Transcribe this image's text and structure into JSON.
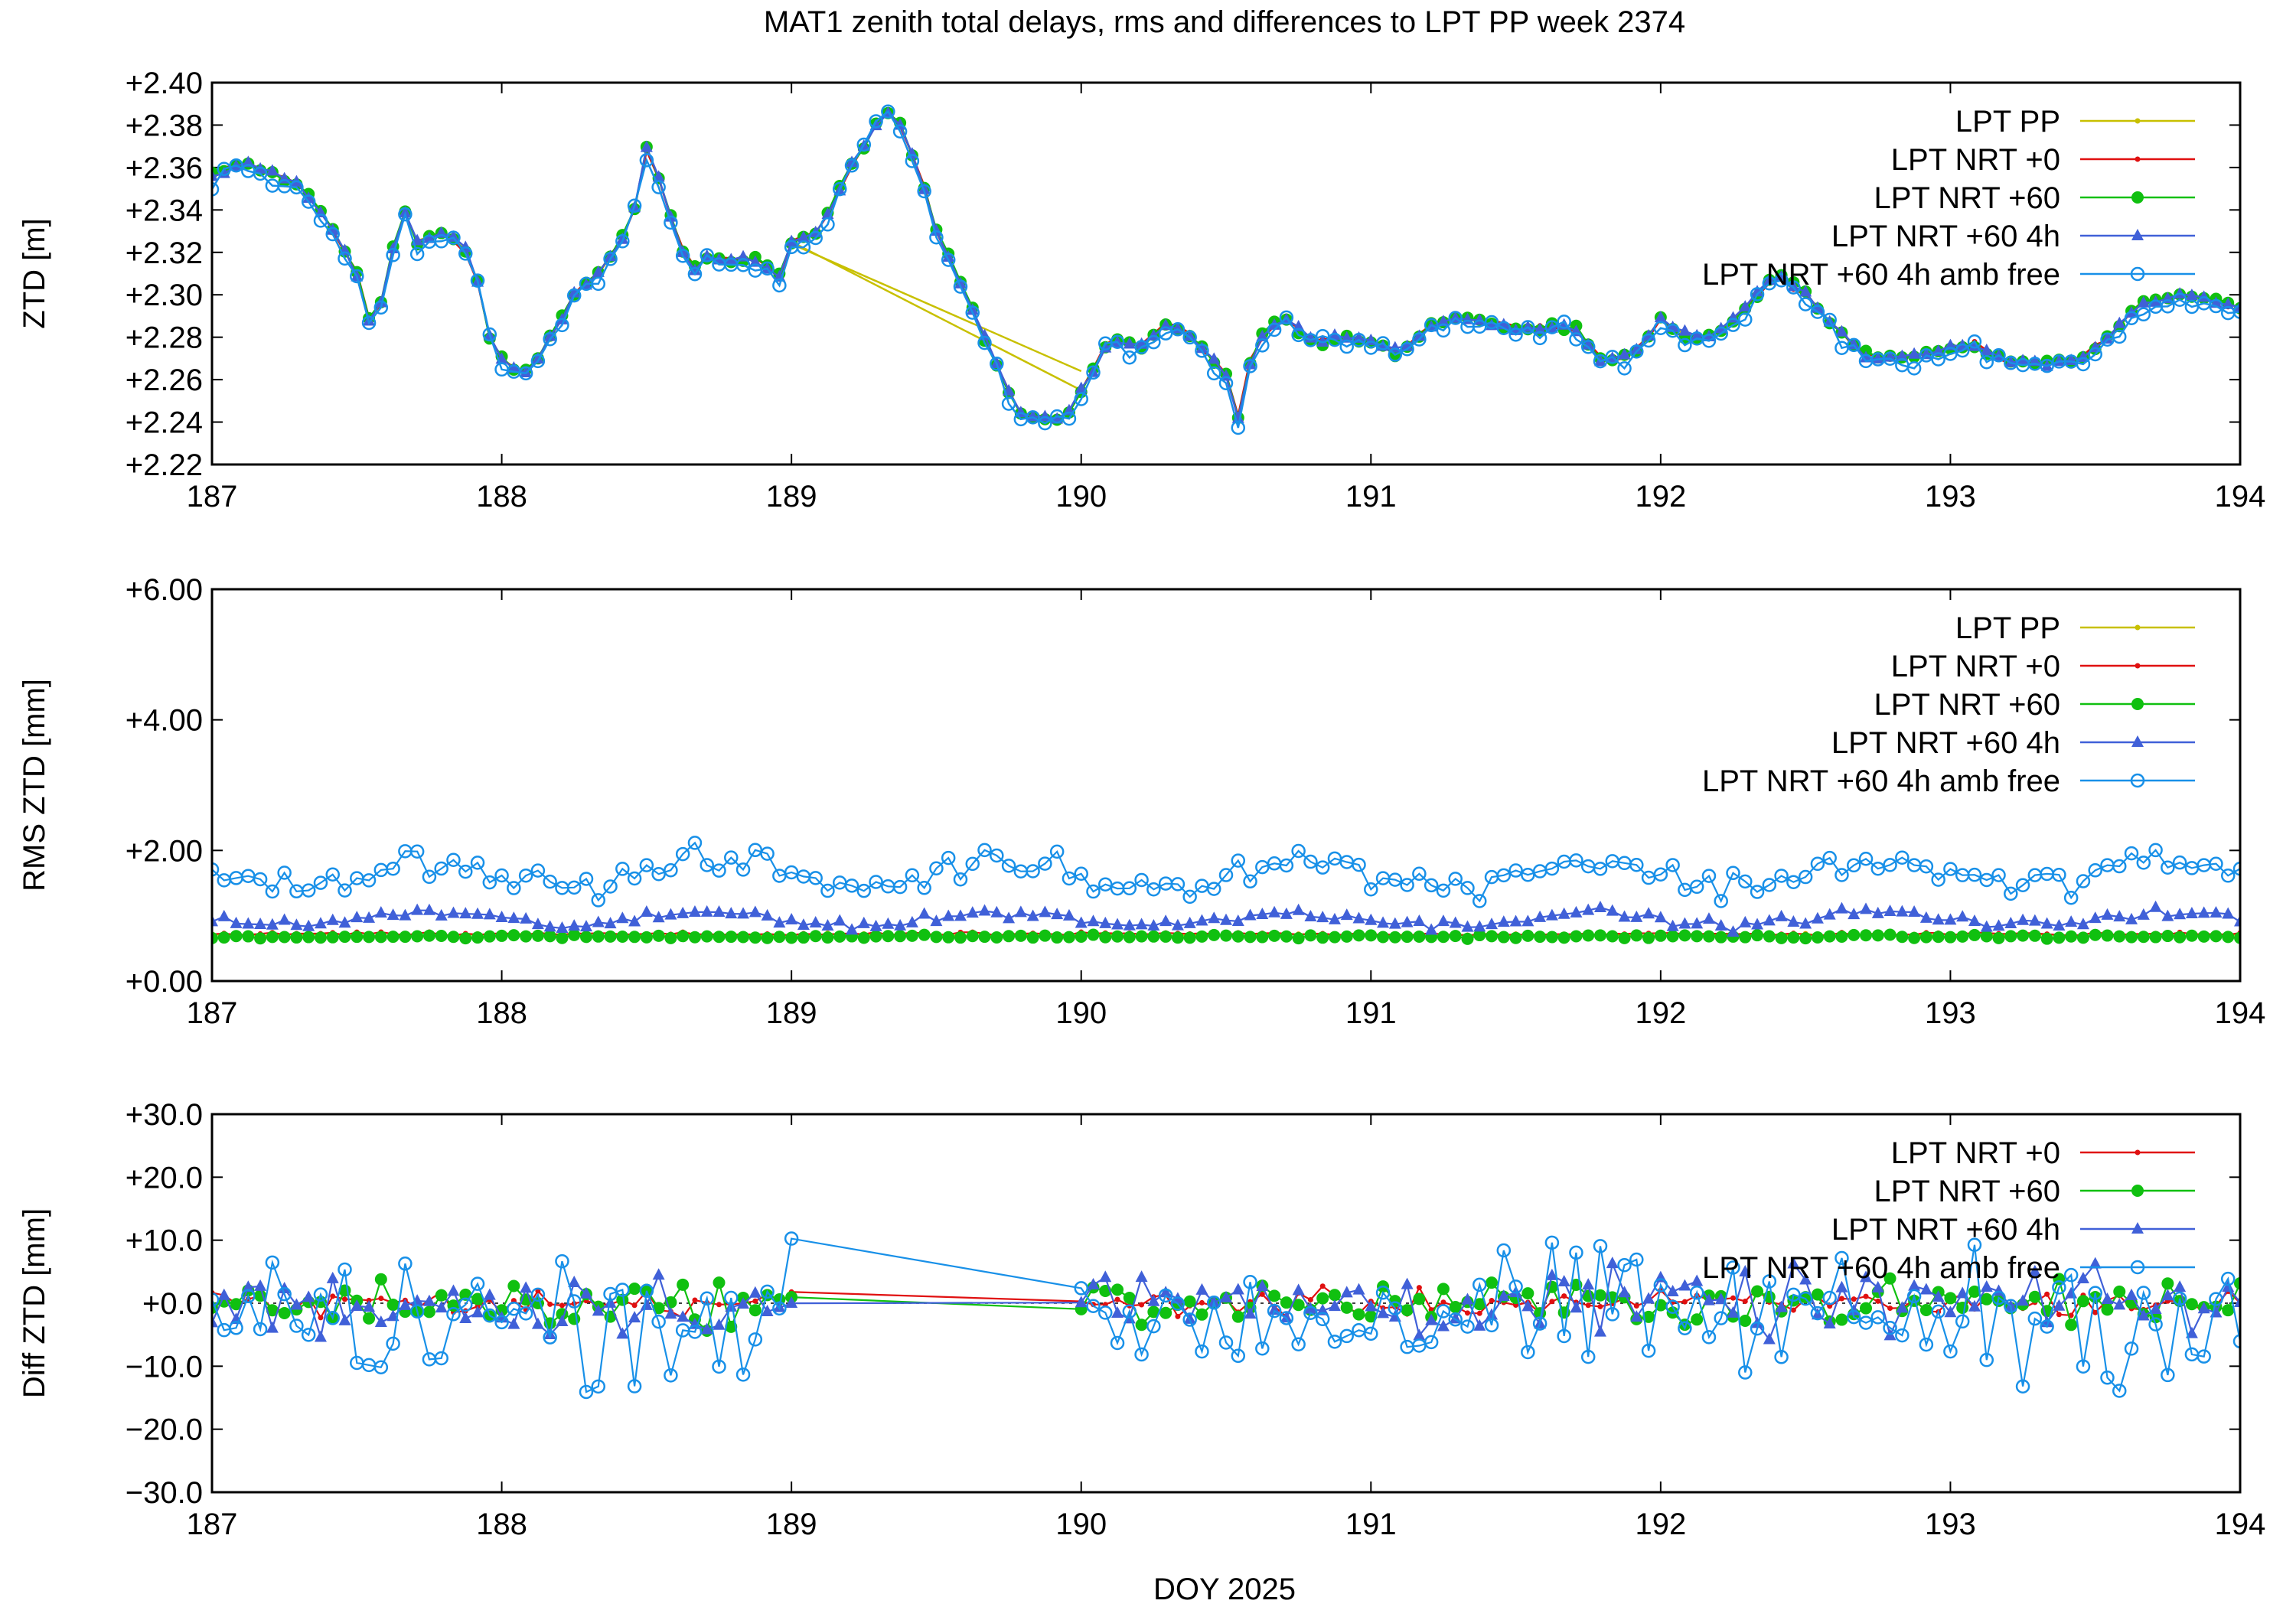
{
  "title": "MAT1 zenith total delays, rms and differences to LPT PP week 2374",
  "xlabel": "DOY 2025",
  "colors": {
    "LPT PP": "#c8c000",
    "LPT NRT +0": "#e01010",
    "LPT NRT +60": "#10c010",
    "LPT NRT +60 4h": "#4060d8",
    "LPT NRT +60 4h amb free": "#1890e8"
  },
  "chart_data": [
    {
      "type": "line",
      "ylabel": "ZTD [m]",
      "xlim": [
        187,
        194
      ],
      "ylim": [
        2.22,
        2.4
      ],
      "xticks": [
        "187",
        "188",
        "189",
        "190",
        "191",
        "192",
        "193",
        "194"
      ],
      "yticks": [
        "+2.22",
        "+2.24",
        "+2.26",
        "+2.28",
        "+2.30",
        "+2.32",
        "+2.34",
        "+2.36",
        "+2.38",
        "+2.40"
      ],
      "legend": "top-right",
      "series": [
        {
          "name": "LPT PP",
          "marker": "dot",
          "line": true
        },
        {
          "name": "LPT NRT +0",
          "marker": "dot",
          "line": true
        },
        {
          "name": "LPT NRT +60",
          "marker": "circle-filled",
          "line": true
        },
        {
          "name": "LPT NRT +60 4h",
          "marker": "triangle",
          "line": true
        },
        {
          "name": "LPT NRT +60 4h amb free",
          "marker": "circle-open",
          "line": true
        }
      ],
      "keypoints": [
        [
          187.0,
          2.356
        ],
        [
          187.1,
          2.362
        ],
        [
          187.2,
          2.358
        ],
        [
          187.3,
          2.352
        ],
        [
          187.4,
          2.335
        ],
        [
          187.5,
          2.31
        ],
        [
          187.55,
          2.285
        ],
        [
          187.6,
          2.3
        ],
        [
          187.65,
          2.345
        ],
        [
          187.7,
          2.325
        ],
        [
          187.8,
          2.33
        ],
        [
          187.9,
          2.318
        ],
        [
          187.95,
          2.282
        ],
        [
          188.0,
          2.27
        ],
        [
          188.08,
          2.262
        ],
        [
          188.15,
          2.275
        ],
        [
          188.25,
          2.3
        ],
        [
          188.35,
          2.312
        ],
        [
          188.45,
          2.335
        ],
        [
          188.5,
          2.368
        ],
        [
          188.55,
          2.352
        ],
        [
          188.6,
          2.33
        ],
        [
          188.65,
          2.31
        ],
        [
          188.7,
          2.318
        ],
        [
          188.8,
          2.316
        ],
        [
          188.9,
          2.318
        ],
        [
          188.95,
          2.305
        ],
        [
          189.0,
          2.325
        ],
        [
          189.1,
          2.33
        ],
        [
          189.2,
          2.36
        ],
        [
          189.3,
          2.382
        ],
        [
          189.35,
          2.388
        ],
        [
          189.45,
          2.355
        ],
        [
          189.5,
          2.33
        ],
        [
          189.6,
          2.3
        ],
        [
          189.7,
          2.27
        ],
        [
          189.78,
          2.245
        ],
        [
          189.85,
          2.242
        ],
        [
          189.95,
          2.242
        ],
        [
          190.0,
          2.255
        ],
        [
          190.1,
          2.28
        ],
        [
          190.2,
          2.275
        ],
        [
          190.3,
          2.288
        ],
        [
          190.4,
          2.278
        ],
        [
          190.5,
          2.262
        ],
        [
          190.53,
          2.236
        ],
        [
          190.6,
          2.278
        ],
        [
          190.7,
          2.29
        ],
        [
          190.8,
          2.278
        ],
        [
          190.9,
          2.28
        ],
        [
          191.0,
          2.278
        ],
        [
          191.1,
          2.272
        ],
        [
          191.2,
          2.285
        ],
        [
          191.3,
          2.29
        ],
        [
          191.5,
          2.284
        ],
        [
          191.7,
          2.285
        ],
        [
          191.8,
          2.268
        ],
        [
          191.9,
          2.272
        ],
        [
          192.0,
          2.288
        ],
        [
          192.1,
          2.28
        ],
        [
          192.2,
          2.282
        ],
        [
          192.3,
          2.295
        ],
        [
          192.4,
          2.31
        ],
        [
          192.5,
          2.3
        ],
        [
          192.6,
          2.285
        ],
        [
          192.7,
          2.272
        ],
        [
          192.8,
          2.27
        ],
        [
          193.0,
          2.274
        ],
        [
          193.1,
          2.276
        ],
        [
          193.2,
          2.268
        ],
        [
          193.3,
          2.268
        ],
        [
          193.45,
          2.27
        ],
        [
          193.55,
          2.28
        ],
        [
          193.65,
          2.296
        ],
        [
          193.8,
          2.3
        ],
        [
          193.9,
          2.298
        ],
        [
          194.0,
          2.294
        ]
      ],
      "gap_segment": {
        "series": "LPT PP",
        "from": [
          189.0,
          2.324
        ],
        "to": [
          190.0,
          2.264
        ]
      }
    },
    {
      "type": "line",
      "ylabel": "RMS ZTD [mm]",
      "xlim": [
        187,
        194
      ],
      "ylim": [
        0,
        6
      ],
      "xticks": [
        "187",
        "188",
        "189",
        "190",
        "191",
        "192",
        "193",
        "194"
      ],
      "yticks": [
        "+0.00",
        "+2.00",
        "+4.00",
        "+6.00"
      ],
      "legend": "top-right",
      "series": [
        {
          "name": "LPT PP",
          "marker": "dot",
          "line": true,
          "level": 0.7
        },
        {
          "name": "LPT NRT +0",
          "marker": "dot",
          "line": true,
          "level": 0.72
        },
        {
          "name": "LPT NRT +60",
          "marker": "circle-filled",
          "line": true,
          "level": 0.68
        },
        {
          "name": "LPT NRT +60 4h",
          "marker": "triangle",
          "line": true,
          "level": 0.95
        },
        {
          "name": "LPT NRT +60 4h amb free",
          "marker": "circle-open",
          "line": true,
          "level": 1.65
        }
      ]
    },
    {
      "type": "line",
      "ylabel": "Diff ZTD [mm]",
      "xlim": [
        187,
        194
      ],
      "ylim": [
        -30,
        30
      ],
      "xticks": [
        "187",
        "188",
        "189",
        "190",
        "191",
        "192",
        "193",
        "194"
      ],
      "yticks": [
        "−30.0",
        "−20.0",
        "−10.0",
        "+0.0",
        "+10.0",
        "+20.0",
        "+30.0"
      ],
      "legend": "top-right",
      "zero_line": true,
      "series": [
        {
          "name": "LPT NRT +0",
          "marker": "dot",
          "line": true
        },
        {
          "name": "LPT NRT +60",
          "marker": "circle-filled",
          "line": true
        },
        {
          "name": "LPT NRT +60 4h",
          "marker": "triangle",
          "line": true
        },
        {
          "name": "LPT NRT +60 4h amb free",
          "marker": "circle-open",
          "line": true
        }
      ],
      "gap": [
        189.0,
        190.0
      ]
    }
  ]
}
